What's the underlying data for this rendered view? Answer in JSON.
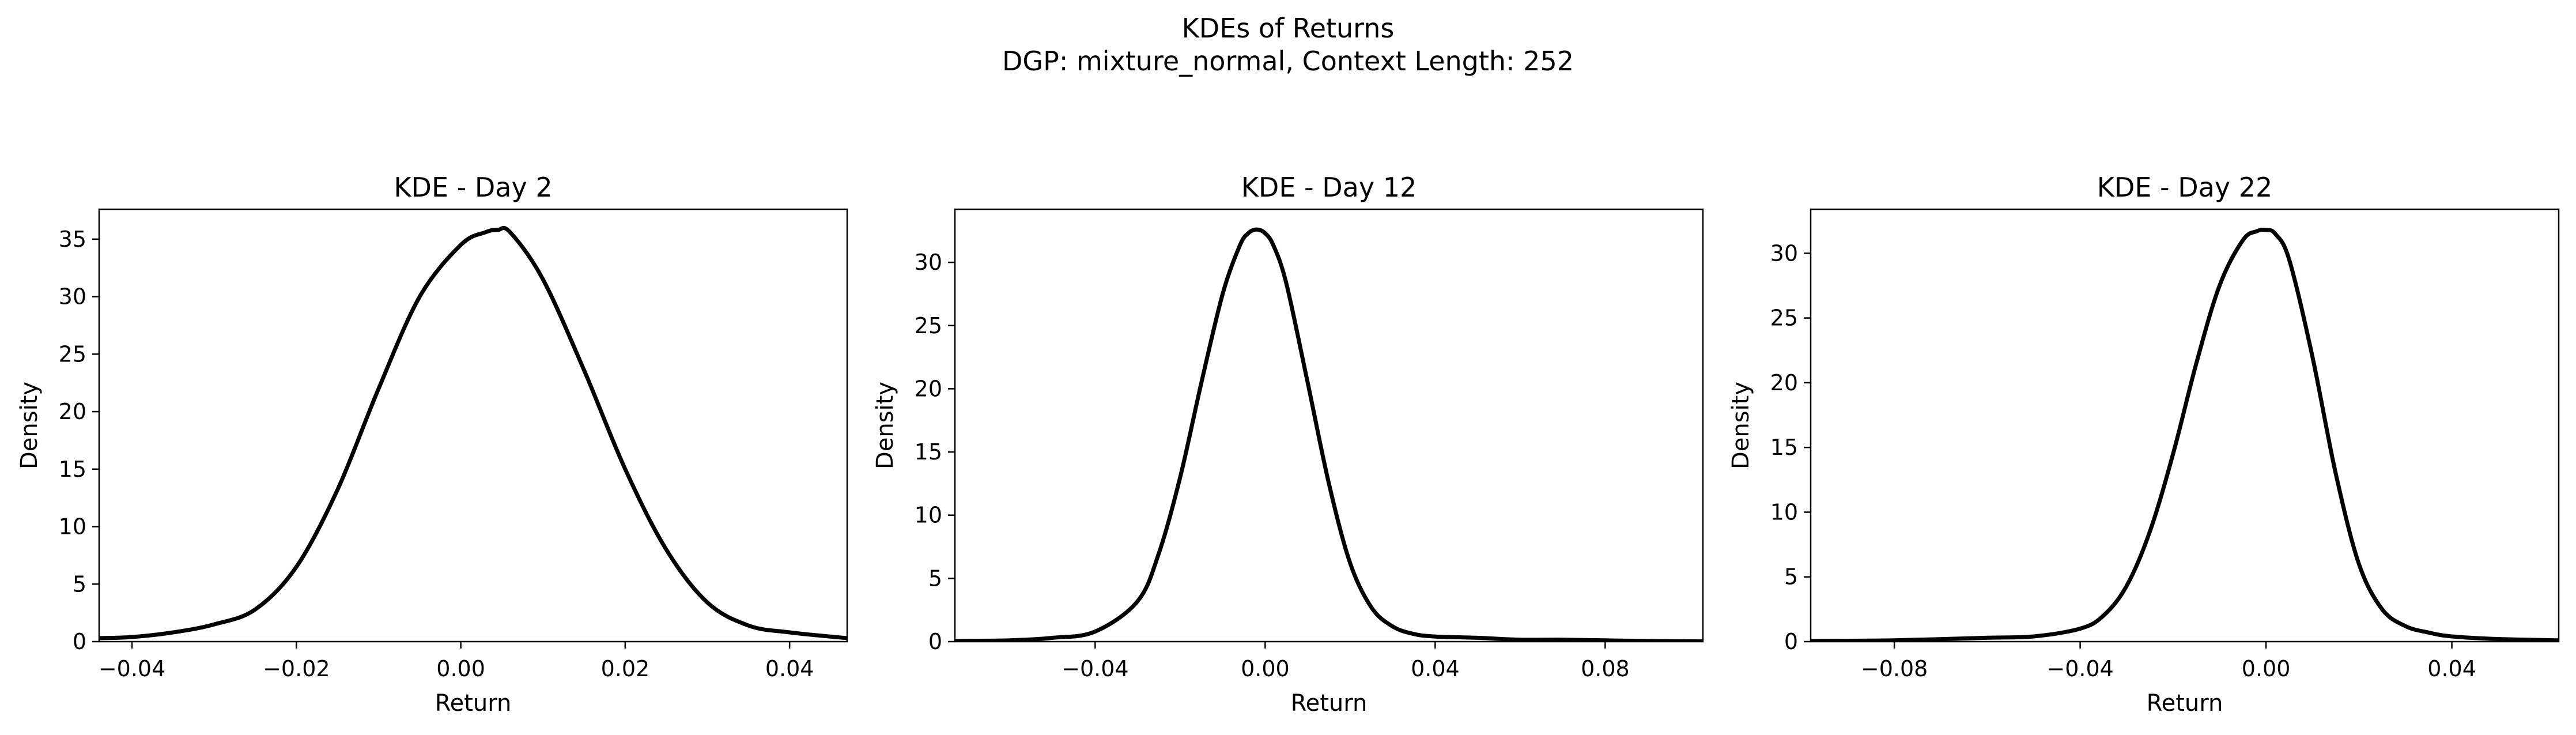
{
  "figure": {
    "title_line1": "KDEs of Returns",
    "title_line2": "DGP: mixture_normal, Context Length: 252",
    "line_color": "#000000"
  },
  "chart_data": [
    {
      "type": "line",
      "title": "KDE - Day 2",
      "xlabel": "Return",
      "ylabel": "Density",
      "xlim": [
        -0.044,
        0.047
      ],
      "ylim": [
        0,
        37.6
      ],
      "xticks": [
        -0.04,
        -0.02,
        0.0,
        0.02,
        0.04
      ],
      "xtick_labels": [
        "−0.04",
        "−0.02",
        "0.00",
        "0.02",
        "0.04"
      ],
      "yticks": [
        0,
        5,
        10,
        15,
        20,
        25,
        30,
        35
      ],
      "ytick_labels": [
        "0",
        "5",
        "10",
        "15",
        "20",
        "25",
        "30",
        "35"
      ],
      "series": [
        {
          "x": [
            -0.044,
            -0.04,
            -0.035,
            -0.03,
            -0.025,
            -0.02,
            -0.015,
            -0.01,
            -0.005,
            0.0,
            0.003,
            0.0045,
            0.006,
            0.01,
            0.015,
            0.02,
            0.025,
            0.03,
            0.035,
            0.04,
            0.047
          ],
          "y": [
            0.3,
            0.4,
            0.8,
            1.5,
            2.8,
            6.5,
            13.2,
            22.0,
            30.0,
            34.5,
            35.6,
            35.8,
            35.6,
            31.5,
            23.6,
            15.0,
            8.0,
            3.4,
            1.4,
            0.8,
            0.3
          ]
        }
      ]
    },
    {
      "type": "line",
      "title": "KDE - Day 12",
      "xlabel": "Return",
      "ylabel": "Density",
      "xlim": [
        -0.073,
        0.103
      ],
      "ylim": [
        0,
        34.2
      ],
      "xticks": [
        -0.04,
        0.0,
        0.04,
        0.08
      ],
      "xtick_labels": [
        "−0.04",
        "0.00",
        "0.04",
        "0.08"
      ],
      "yticks": [
        0,
        5,
        10,
        15,
        20,
        25,
        30
      ],
      "ytick_labels": [
        "0",
        "5",
        "10",
        "15",
        "20",
        "25",
        "30"
      ],
      "series": [
        {
          "x": [
            -0.073,
            -0.06,
            -0.05,
            -0.04,
            -0.03,
            -0.025,
            -0.02,
            -0.015,
            -0.01,
            -0.006,
            -0.004,
            -0.002,
            0.0,
            0.002,
            0.005,
            0.01,
            0.015,
            0.02,
            0.025,
            0.03,
            0.035,
            0.04,
            0.05,
            0.06,
            0.07,
            0.08,
            0.09,
            0.103
          ],
          "y": [
            0.05,
            0.1,
            0.3,
            0.8,
            3.2,
            7.0,
            13.0,
            20.5,
            27.5,
            31.3,
            32.3,
            32.6,
            32.3,
            31.3,
            28.3,
            20.5,
            12.5,
            6.2,
            2.7,
            1.2,
            0.6,
            0.4,
            0.3,
            0.15,
            0.15,
            0.1,
            0.05,
            0.02
          ]
        }
      ]
    },
    {
      "type": "line",
      "title": "KDE - Day 22",
      "xlabel": "Return",
      "ylabel": "Density",
      "xlim": [
        -0.098,
        0.063
      ],
      "ylim": [
        0,
        33.4
      ],
      "xticks": [
        -0.08,
        -0.04,
        0.0,
        0.04
      ],
      "xtick_labels": [
        "−0.08",
        "−0.04",
        "0.00",
        "0.04"
      ],
      "yticks": [
        0,
        5,
        10,
        15,
        20,
        25,
        30
      ],
      "ytick_labels": [
        "0",
        "5",
        "10",
        "15",
        "20",
        "25",
        "30"
      ],
      "series": [
        {
          "x": [
            -0.098,
            -0.08,
            -0.06,
            -0.05,
            -0.04,
            -0.035,
            -0.03,
            -0.025,
            -0.02,
            -0.015,
            -0.01,
            -0.005,
            -0.002,
            0.0,
            0.002,
            0.005,
            0.01,
            0.015,
            0.02,
            0.025,
            0.03,
            0.035,
            0.04,
            0.05,
            0.063
          ],
          "y": [
            0.05,
            0.1,
            0.3,
            0.4,
            1.0,
            2.0,
            4.3,
            8.5,
            14.5,
            21.5,
            27.5,
            31.0,
            31.7,
            31.8,
            31.5,
            29.5,
            22.0,
            13.0,
            6.0,
            2.5,
            1.2,
            0.7,
            0.4,
            0.2,
            0.1
          ]
        }
      ]
    }
  ]
}
